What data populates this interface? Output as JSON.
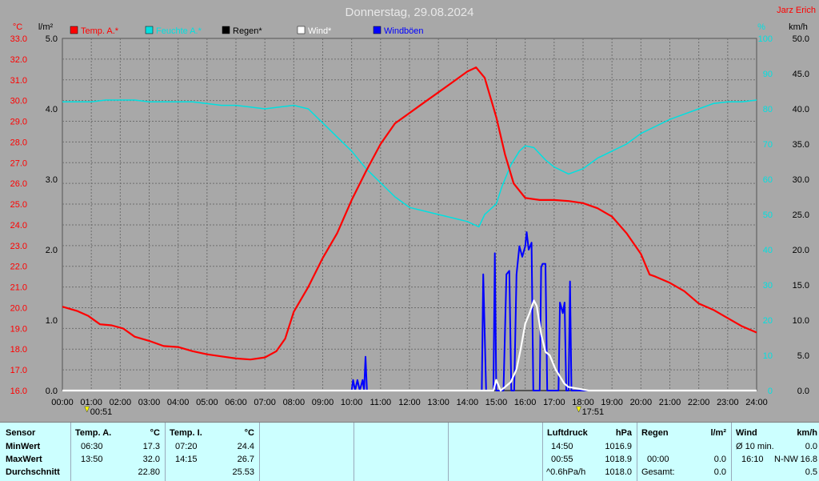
{
  "header": {
    "title": "Donnerstag, 29.08.2024",
    "author": "Jarz Erich"
  },
  "axes": {
    "left_temp_unit": "°C",
    "left_rain_unit": "l/m²",
    "right_hum_unit": "%",
    "right_wind_unit": "km/h",
    "temp_ticks": [
      "33.0",
      "32.0",
      "31.0",
      "30.0",
      "29.0",
      "28.0",
      "27.0",
      "26.0",
      "25.0",
      "24.0",
      "23.0",
      "22.0",
      "21.0",
      "20.0",
      "19.0",
      "18.0",
      "17.0",
      "16.0"
    ],
    "rain_ticks": [
      "5.0",
      "4.0",
      "3.0",
      "2.0",
      "1.0",
      "0.0"
    ],
    "hum_ticks": [
      "100",
      "90",
      "80",
      "70",
      "60",
      "50",
      "40",
      "30",
      "20",
      "10",
      "0"
    ],
    "wind_ticks": [
      "50.0",
      "45.0",
      "40.0",
      "35.0",
      "30.0",
      "25.0",
      "20.0",
      "15.0",
      "10.0",
      "5.0",
      "0.0"
    ],
    "x_ticks": [
      "00:00",
      "01:00",
      "02:00",
      "03:00",
      "04:00",
      "05:00",
      "06:00",
      "07:00",
      "08:00",
      "09:00",
      "10:00",
      "11:00",
      "12:00",
      "13:00",
      "14:00",
      "15:00",
      "16:00",
      "17:00",
      "18:00",
      "19:00",
      "20:00",
      "21:00",
      "22:00",
      "23:00",
      "24:00"
    ],
    "sunrise": "00:51",
    "sunset": "17:51"
  },
  "colors": {
    "background": "#a8a8a8",
    "grid": "#6e6e6e",
    "temp": "#ff0000",
    "humidity": "#00e0e0",
    "rain": "#000000",
    "wind": "#ffffff",
    "gust": "#0000ff",
    "temp_axis": "#ff0000",
    "hum_axis": "#00e0e0",
    "stats_bg": "#ccffff"
  },
  "chart_data": {
    "type": "line",
    "x_unit": "hours",
    "xlim": [
      0,
      24
    ],
    "legend": [
      {
        "label": "Temp. A.*",
        "color": "#ff0000"
      },
      {
        "label": "Feuchte A.*",
        "color": "#00e0e0"
      },
      {
        "label": "Regen*",
        "color": "#000000"
      },
      {
        "label": "Wind*",
        "color": "#ffffff"
      },
      {
        "label": "Windböen",
        "color": "#0000ff"
      }
    ],
    "series": [
      {
        "name": "Temp. A.*",
        "axis": "temp",
        "ylim": [
          16,
          33
        ],
        "points": [
          [
            0,
            20.05
          ],
          [
            0.5,
            19.85
          ],
          [
            0.9,
            19.6
          ],
          [
            1.3,
            19.2
          ],
          [
            1.7,
            19.15
          ],
          [
            2.1,
            19.0
          ],
          [
            2.5,
            18.6
          ],
          [
            3,
            18.4
          ],
          [
            3.5,
            18.15
          ],
          [
            4,
            18.1
          ],
          [
            4.5,
            17.9
          ],
          [
            5,
            17.75
          ],
          [
            5.5,
            17.65
          ],
          [
            6,
            17.55
          ],
          [
            6.5,
            17.5
          ],
          [
            7,
            17.6
          ],
          [
            7.4,
            17.9
          ],
          [
            7.7,
            18.5
          ],
          [
            8,
            19.8
          ],
          [
            8.5,
            21.0
          ],
          [
            9,
            22.4
          ],
          [
            9.5,
            23.6
          ],
          [
            10,
            25.2
          ],
          [
            10.5,
            26.6
          ],
          [
            11,
            27.9
          ],
          [
            11.5,
            28.9
          ],
          [
            12,
            29.4
          ],
          [
            12.5,
            29.9
          ],
          [
            13,
            30.4
          ],
          [
            13.5,
            30.9
          ],
          [
            14,
            31.4
          ],
          [
            14.3,
            31.6
          ],
          [
            14.6,
            31.1
          ],
          [
            15,
            29.2
          ],
          [
            15.3,
            27.4
          ],
          [
            15.6,
            26.0
          ],
          [
            16,
            25.3
          ],
          [
            16.5,
            25.2
          ],
          [
            17,
            25.2
          ],
          [
            17.5,
            25.15
          ],
          [
            18,
            25.05
          ],
          [
            18.5,
            24.8
          ],
          [
            19,
            24.4
          ],
          [
            19.5,
            23.6
          ],
          [
            20,
            22.6
          ],
          [
            20.3,
            21.6
          ],
          [
            20.5,
            21.5
          ],
          [
            21,
            21.2
          ],
          [
            21.5,
            20.8
          ],
          [
            22,
            20.2
          ],
          [
            22.5,
            19.9
          ],
          [
            23,
            19.5
          ],
          [
            23.5,
            19.1
          ],
          [
            24,
            18.8
          ]
        ]
      },
      {
        "name": "Feuchte A.*",
        "axis": "humidity",
        "ylim": [
          0,
          100
        ],
        "points": [
          [
            0,
            82
          ],
          [
            0.5,
            82
          ],
          [
            1,
            82
          ],
          [
            1.5,
            82.5
          ],
          [
            2,
            82.5
          ],
          [
            2.5,
            82.5
          ],
          [
            3,
            82
          ],
          [
            3.5,
            82
          ],
          [
            4,
            82
          ],
          [
            4.5,
            82
          ],
          [
            5,
            81.5
          ],
          [
            5.5,
            81
          ],
          [
            6,
            81
          ],
          [
            6.5,
            80.5
          ],
          [
            7,
            80
          ],
          [
            7.5,
            80.5
          ],
          [
            8,
            81
          ],
          [
            8.5,
            80
          ],
          [
            9,
            76
          ],
          [
            9.5,
            72
          ],
          [
            10,
            68
          ],
          [
            10.5,
            63
          ],
          [
            11,
            59
          ],
          [
            11.5,
            55
          ],
          [
            12,
            52
          ],
          [
            12.5,
            51
          ],
          [
            13,
            50
          ],
          [
            13.5,
            49
          ],
          [
            14,
            48
          ],
          [
            14.4,
            46.5
          ],
          [
            14.6,
            50
          ],
          [
            15,
            53
          ],
          [
            15.2,
            58
          ],
          [
            15.5,
            64
          ],
          [
            15.8,
            68
          ],
          [
            16,
            69.5
          ],
          [
            16.3,
            69
          ],
          [
            16.7,
            65.5
          ],
          [
            17,
            63.5
          ],
          [
            17.5,
            61.5
          ],
          [
            18,
            63
          ],
          [
            18.5,
            66
          ],
          [
            19,
            68
          ],
          [
            19.5,
            70
          ],
          [
            20,
            73
          ],
          [
            20.5,
            75
          ],
          [
            21,
            77
          ],
          [
            21.5,
            78.5
          ],
          [
            22,
            80
          ],
          [
            22.5,
            81.5
          ],
          [
            23,
            82
          ],
          [
            23.5,
            82
          ],
          [
            24,
            82.5
          ]
        ]
      },
      {
        "name": "Regen*",
        "axis": "rain",
        "ylim": [
          0,
          5
        ],
        "points": [
          [
            0,
            0
          ],
          [
            24,
            0
          ]
        ]
      },
      {
        "name": "Wind*",
        "axis": "wind",
        "ylim": [
          0,
          50
        ],
        "points": [
          [
            0,
            0
          ],
          [
            14.9,
            0
          ],
          [
            15.0,
            1.5
          ],
          [
            15.15,
            0
          ],
          [
            15.3,
            0.5
          ],
          [
            15.5,
            1.2
          ],
          [
            15.7,
            3.0
          ],
          [
            15.85,
            6.0
          ],
          [
            16.0,
            9.5
          ],
          [
            16.15,
            11.0
          ],
          [
            16.3,
            12.8
          ],
          [
            16.4,
            12.0
          ],
          [
            16.55,
            8.0
          ],
          [
            16.7,
            5.5
          ],
          [
            16.85,
            5.0
          ],
          [
            16.95,
            4.0
          ],
          [
            17.05,
            3.0
          ],
          [
            17.2,
            2.0
          ],
          [
            17.35,
            1.0
          ],
          [
            17.5,
            0.5
          ],
          [
            17.8,
            0.3
          ],
          [
            18.2,
            0
          ],
          [
            24,
            0
          ]
        ]
      },
      {
        "name": "Windböen",
        "axis": "wind",
        "ylim": [
          0,
          50
        ],
        "points": [
          [
            0,
            0
          ],
          [
            10.0,
            0
          ],
          [
            10.05,
            1.5
          ],
          [
            10.12,
            0
          ],
          [
            10.2,
            1.5
          ],
          [
            10.28,
            0
          ],
          [
            10.38,
            1.5
          ],
          [
            10.43,
            0
          ],
          [
            10.48,
            4.8
          ],
          [
            10.53,
            0
          ],
          [
            14.5,
            0
          ],
          [
            14.55,
            16.5
          ],
          [
            14.65,
            0
          ],
          [
            14.9,
            0
          ],
          [
            14.95,
            19.5
          ],
          [
            15.0,
            0
          ],
          [
            15.25,
            0
          ],
          [
            15.35,
            16.5
          ],
          [
            15.45,
            17.0
          ],
          [
            15.52,
            0
          ],
          [
            15.62,
            0
          ],
          [
            15.7,
            16.5
          ],
          [
            15.8,
            20.5
          ],
          [
            15.9,
            19.0
          ],
          [
            16.0,
            20.5
          ],
          [
            16.05,
            22.5
          ],
          [
            16.12,
            20.0
          ],
          [
            16.22,
            21.0
          ],
          [
            16.28,
            0
          ],
          [
            16.5,
            0
          ],
          [
            16.55,
            17.5
          ],
          [
            16.6,
            18.0
          ],
          [
            16.7,
            18.0
          ],
          [
            16.76,
            0
          ],
          [
            17.15,
            0
          ],
          [
            17.2,
            12.5
          ],
          [
            17.3,
            11.0
          ],
          [
            17.36,
            12.5
          ],
          [
            17.42,
            0
          ],
          [
            17.5,
            0
          ],
          [
            17.55,
            15.5
          ],
          [
            17.6,
            0
          ],
          [
            24,
            0
          ]
        ]
      }
    ]
  },
  "stats": {
    "sensor": {
      "title": "Sensor",
      "rows": [
        "MinWert",
        "MaxWert",
        "Durchschnitt"
      ]
    },
    "temp_a": {
      "title": "Temp. A.",
      "unit": "°C",
      "times": [
        "06:30",
        "13:50",
        ""
      ],
      "values": [
        "17.3",
        "32.0",
        "22.80"
      ]
    },
    "temp_i": {
      "title": "Temp. I.",
      "unit": "°C",
      "times": [
        "07:20",
        "14:15",
        ""
      ],
      "values": [
        "24.4",
        "26.7",
        "25.53"
      ]
    },
    "pressure": {
      "title": "Luftdruck",
      "unit": "hPa",
      "labels": [
        "14:50",
        "00:55",
        "^0.6hPa/h"
      ],
      "values": [
        "1016.9",
        "1018.9",
        "1018.0"
      ]
    },
    "rain": {
      "title": "Regen",
      "unit": "l/m²",
      "labels": [
        "",
        "00:00",
        "Gesamt:"
      ],
      "values": [
        "",
        "0.0",
        "0.0"
      ]
    },
    "wind": {
      "title": "Wind",
      "unit": "km/h",
      "labels": [
        "Ø 10 min.",
        "16:10",
        ""
      ],
      "dirs": [
        "",
        "N-NW",
        ""
      ],
      "values": [
        "0.0",
        "16.8",
        "0.5"
      ]
    }
  }
}
